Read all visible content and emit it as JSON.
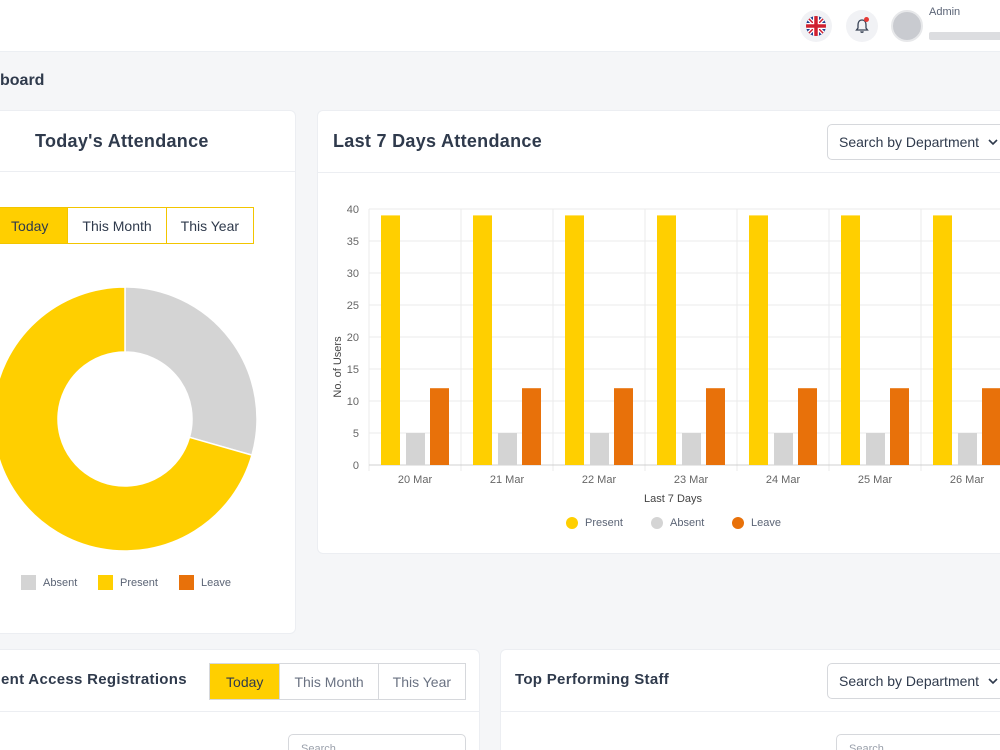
{
  "header": {
    "admin_name": "Admin",
    "flag_icon": "uk-flag-icon",
    "bell_icon": "bell-icon"
  },
  "page": {
    "title": "board"
  },
  "today_attendance": {
    "title": "Today's Attendance",
    "tabs": [
      "Today",
      "This Month",
      "This Year"
    ],
    "active_tab": "Today",
    "donut": {
      "slices": [
        {
          "label": "Absent",
          "value": 5,
          "color": "#d4d4d4"
        },
        {
          "label": "Present",
          "value": 12,
          "color": "#ffcf00"
        }
      ]
    },
    "legend": [
      {
        "label": "Absent",
        "color": "#d4d4d4"
      },
      {
        "label": "Present",
        "color": "#ffcf00"
      },
      {
        "label": "Leave",
        "color": "#e8710a"
      }
    ]
  },
  "last7": {
    "title": "Last 7 Days Attendance",
    "dropdown": "Search by Department",
    "legend": [
      {
        "label": "Present",
        "color": "#ffcf00"
      },
      {
        "label": "Absent",
        "color": "#d4d4d4"
      },
      {
        "label": "Leave",
        "color": "#e8710a"
      }
    ]
  },
  "access": {
    "title": "ent Access Registrations",
    "tabs": [
      "Today",
      "This Month",
      "This Year"
    ],
    "search_placeholder": "Search"
  },
  "top_staff": {
    "title": "Top Performing Staff",
    "dropdown": "Search by Department",
    "search_placeholder": "Search"
  },
  "chart_data": {
    "type": "bar",
    "title": "Last 7 Days Attendance",
    "xlabel": "Last 7 Days",
    "ylabel": "No. of Users",
    "ylim": [
      0,
      40
    ],
    "yticks": [
      0,
      5,
      10,
      15,
      20,
      25,
      30,
      35,
      40
    ],
    "categories": [
      "20 Mar",
      "21 Mar",
      "22 Mar",
      "23 Mar",
      "24 Mar",
      "25 Mar",
      "26 Mar"
    ],
    "series": [
      {
        "name": "Present",
        "color": "#ffcf00",
        "values": [
          39,
          39,
          39,
          39,
          39,
          39,
          39
        ]
      },
      {
        "name": "Absent",
        "color": "#d4d4d4",
        "values": [
          5,
          5,
          5,
          5,
          5,
          5,
          5
        ]
      },
      {
        "name": "Leave",
        "color": "#e8710a",
        "values": [
          12,
          12,
          12,
          12,
          12,
          12,
          12
        ]
      }
    ]
  }
}
